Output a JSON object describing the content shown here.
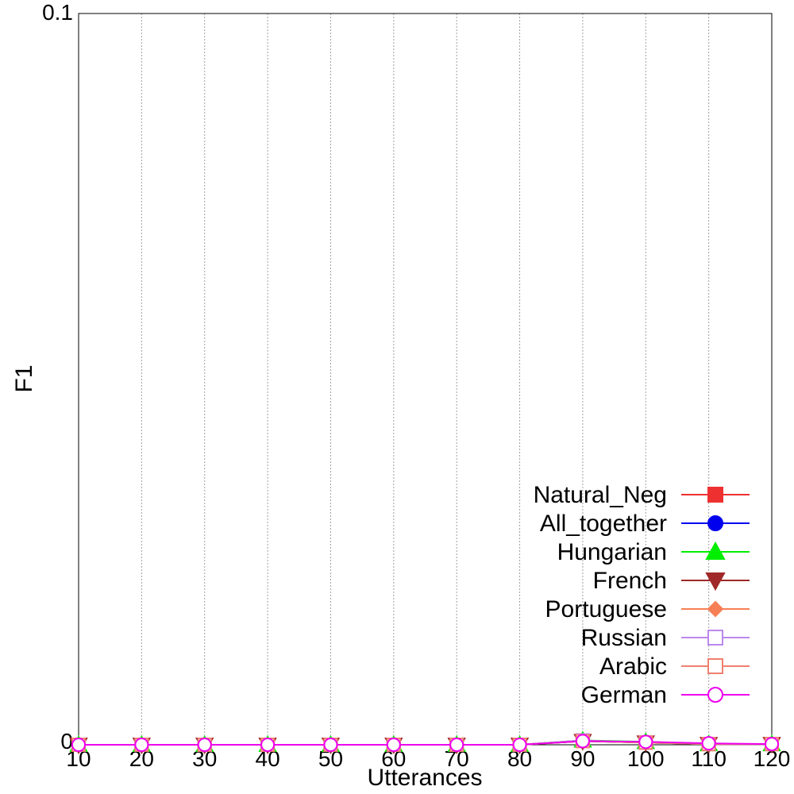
{
  "chart_data": {
    "type": "line",
    "xlabel": "Utterances",
    "ylabel": "F1",
    "x": [
      10,
      20,
      30,
      40,
      50,
      60,
      70,
      80,
      90,
      100,
      110,
      120
    ],
    "xlim": [
      10,
      120
    ],
    "ylim": [
      0,
      0.1
    ],
    "x_ticks": [
      10,
      20,
      30,
      40,
      50,
      60,
      70,
      80,
      90,
      100,
      110,
      120
    ],
    "y_ticks": [
      0,
      0.1
    ],
    "y_tick_labels": [
      "0",
      "0.1"
    ],
    "grid": "vertical dotted",
    "legend_position": "bottom-right",
    "series": [
      {
        "name": "Natural_Neg",
        "color": "#ee3030",
        "marker": "square-filled",
        "values": [
          0,
          0,
          0,
          0,
          0,
          0,
          0,
          0,
          0.0006,
          0.0003,
          0.0001,
          0.0001
        ]
      },
      {
        "name": "All_together",
        "color": "#0000ee",
        "marker": "circle-filled",
        "values": [
          0,
          0,
          0,
          0,
          0,
          0,
          0,
          0,
          0.0005,
          0.0003,
          0.0001,
          0.0001
        ]
      },
      {
        "name": "Hungarian",
        "color": "#00ee00",
        "marker": "triangle-up-filled",
        "values": [
          0,
          0,
          0,
          0,
          0,
          0,
          0,
          0,
          0.0006,
          0.0004,
          0.0001,
          0.0001
        ]
      },
      {
        "name": "French",
        "color": "#a02828",
        "marker": "triangle-down-filled",
        "values": [
          0,
          0,
          0,
          0,
          0,
          0,
          0,
          0,
          0.0005,
          0.0003,
          0.0001,
          0.0001
        ]
      },
      {
        "name": "Portuguese",
        "color": "#f77f55",
        "marker": "diamond-filled",
        "values": [
          0,
          0,
          0,
          0,
          0,
          0,
          0,
          0,
          0.0005,
          0.0003,
          0.0001,
          0.0001
        ]
      },
      {
        "name": "Russian",
        "color": "#bb88ee",
        "marker": "square-open",
        "values": [
          0,
          0,
          0,
          0,
          0,
          0,
          0,
          0,
          0.0006,
          0.0003,
          0.0001,
          0.0001
        ]
      },
      {
        "name": "Arabic",
        "color": "#f08070",
        "marker": "square-open",
        "values": [
          0,
          0,
          0,
          0,
          0,
          0,
          0,
          0,
          0.0005,
          0.0003,
          0.0001,
          0.0001
        ]
      },
      {
        "name": "German",
        "color": "#ee00ee",
        "marker": "circle-open",
        "values": [
          0,
          0,
          0,
          0,
          0,
          0,
          0,
          0,
          0.0005,
          0.0004,
          0.0002,
          0.0001
        ]
      }
    ]
  }
}
